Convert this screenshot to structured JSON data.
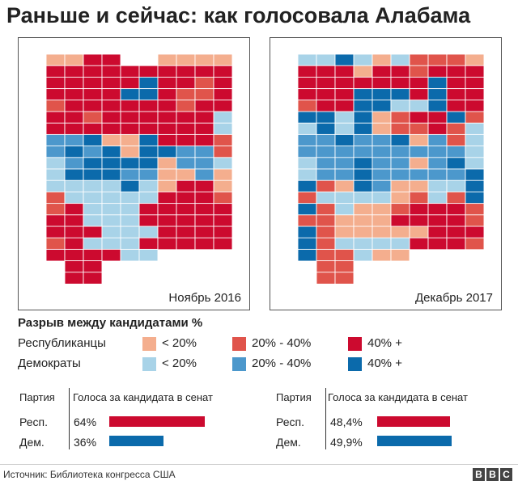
{
  "title": "Раньше и сейчас: как голосовала Алабама",
  "colors": {
    "rep_lt20": "#f4ae8e",
    "rep_20_40": "#e0544b",
    "rep_40plus": "#cc0a2f",
    "dem_lt20": "#a8d3e8",
    "dem_20_40": "#4c98cc",
    "dem_40plus": "#0b6aab"
  },
  "maps": [
    {
      "caption": "Ноябрь 2016",
      "grid": [
        "EERRCCEEEE",
        "RRRRRRRRRR",
        "RRRRRBRRGR",
        "RRRRBBRGGR",
        "GRRRRRRGRR",
        "RRGRRRRRRA",
        "RRRRRRRRRA",
        "DDBEEBRRRG",
        "DBDBEBBDDG",
        "ADBBBBEDDA",
        "ABBBDDEEDE",
        "AAAABAERRE",
        "GAAAAARRRG",
        "GRAAARRRRR",
        "RRAAARRRRR",
        "RRRAAARRRR",
        "GRAAARRRRR",
        "RRRRAA....",
        ".RR.......",
        ".RR......."
      ]
    },
    {
      "caption": "Декабрь 2017",
      "grid": [
        "AABAEAGGGE",
        "RRRERRGRRR",
        "RRRRRRRBRR",
        "RRRBBBRBRR",
        "GRRBBAABRR",
        "BBABEGRRBG",
        "ABABEGGRGA",
        "DDBDDBEDGA",
        "DDDDDDDDDA",
        "ADDBDDEDBA",
        "ADDBDDDDDB",
        "BGEBDEEAAB",
        "GAAAAEGAGB",
        "BGAEEGRRRG",
        "GGEEERRRRG",
        "BGEEEEERRR",
        "BGAAAARRRG",
        "BGGAEE....",
        ".GG.......",
        ".GG......."
      ]
    }
  ],
  "legend": {
    "title": "Разрыв между кандидатами %",
    "rows": [
      {
        "label": "Республиканцы",
        "items": [
          "< 20%",
          "20% - 40%",
          "40% +"
        ]
      },
      {
        "label": "Демократы",
        "items": [
          "< 20%",
          "20% - 40%",
          "40% +"
        ]
      }
    ]
  },
  "tables": [
    {
      "header_party": "Партия",
      "header_votes": "Голоса за кандидата в сенат",
      "rows": [
        {
          "party": "Респ.",
          "pct_label": "64%",
          "value": 64,
          "color": "#cc0a2f"
        },
        {
          "party": "Дем.",
          "pct_label": "36%",
          "value": 36,
          "color": "#0b6aab"
        }
      ]
    },
    {
      "header_party": "Партия",
      "header_votes": "Голоса за кандидата в сенат",
      "rows": [
        {
          "party": "Респ.",
          "pct_label": "48,4%",
          "value": 48.4,
          "color": "#cc0a2f"
        },
        {
          "party": "Дем.",
          "pct_label": "49,9%",
          "value": 49.9,
          "color": "#0b6aab"
        }
      ]
    }
  ],
  "source": "Источник: Библиотека конгресса США",
  "logo_letters": [
    "B",
    "B",
    "C"
  ]
}
